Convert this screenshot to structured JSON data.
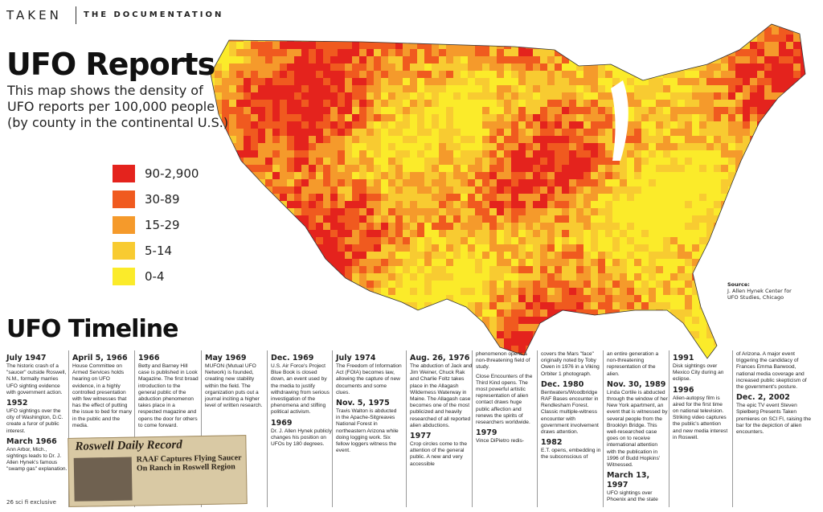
{
  "header": {
    "brand": "TAKEN",
    "section": "THE DOCUMENTATION"
  },
  "map": {
    "title": "UFO Reports",
    "subtitle": [
      "This map shows the density of",
      "UFO reports per 100,000 people",
      "(by county in the continental U.S.)"
    ],
    "legend": [
      {
        "label": "90-2,900",
        "color": "#e4231d"
      },
      {
        "label": "30-89",
        "color": "#f05a1f"
      },
      {
        "label": "15-29",
        "color": "#f59a2b"
      },
      {
        "label": "5-14",
        "color": "#f8cb31"
      },
      {
        "label": "0-4",
        "color": "#fbeb2a"
      }
    ],
    "source": [
      "Source:",
      "J. Allen Hynek Center for",
      "UFO Studies, Chicago"
    ]
  },
  "timeline": {
    "title": "UFO Timeline",
    "columns": [
      [
        {
          "date": "July 1947",
          "text": "The historic crash of a \"saucer\" outside Roswell, N.M., formally marries UFO sighting evidence with government action."
        },
        {
          "date": "1952",
          "text": "UFO sightings over the city of Washington, D.C. create a furor of public interest."
        },
        {
          "date": "March 1966",
          "text": "Ann Arbor, Mich., sightings leads to Dr. J. Allen Hynek's famous \"swamp gas\" explanation."
        }
      ],
      [
        {
          "date": "April 5, 1966",
          "text": "House Committee on Armed Services holds hearing on UFO evidence, in a highly controlled presentation with few witnesses that has the effect of putting the issue to bed for many in the public and the media."
        }
      ],
      [
        {
          "date": "1966",
          "text": "Betty and Barney Hill case is published in Look Magazine. The first broad introduction to the general public of the abduction phenomenon takes place in a respected magazine and opens the door for others to come forward."
        }
      ],
      [
        {
          "date": "May 1969",
          "text": "MUFON (Mutual UFO Network) is founded, creating new stability within the field. The organization puts out a journal inciting a higher level of written research."
        }
      ],
      [
        {
          "date": "Dec. 1969",
          "text": "U.S. Air Force's Project Blue Book is closed down, an event used by the media to justify withdrawing from serious investigation of the phenomena and stifling political activism."
        },
        {
          "date": "1969",
          "text": "Dr. J. Allen Hynek publicly changes his position on UFOs by 180 degrees."
        }
      ],
      [
        {
          "date": "July 1974",
          "text": "The Freedom of Information Act (FOIA) becomes law, allowing the capture of new documents and some clues."
        },
        {
          "date": "Nov. 5, 1975",
          "text": "Travis Walton is abducted in the Apache-Sitgreaves National Forest in northeastern Arizona while doing logging work. Six fellow loggers witness the event."
        }
      ],
      [
        {
          "date": "Aug. 26, 1976",
          "text": "The abduction of Jack and Jim Weiner, Chuck Rak and Charlie Foltz takes place in the Allagash Wilderness Waterway in Maine. The Allagash case becomes one of the most publicized and heavily researched of all reported alien abductions."
        },
        {
          "date": "1977",
          "text": "Crop circles come to the attention of the general public. A new and very accessible"
        }
      ],
      [
        {
          "text": "phenomenon opens a non-threatening field of study."
        },
        {
          "text": "Close Encounters of the Third Kind opens. The most powerful artistic representation of alien contact draws huge public affection and renews the spirits of researchers worldwide."
        },
        {
          "date": "1979",
          "text": "Vince DiPietro redis-"
        }
      ],
      [
        {
          "text": "covers the Mars \"face\" originally noted by Toby Owen in 1976 in a Viking Orbiter 1 photograph."
        },
        {
          "date": "Dec. 1980",
          "text": "Bentwaters/Woodbridge RAF Bases encounter in Rendlesham Forest. Classic multiple-witness encounter with government involvement draws attention."
        },
        {
          "date": "1982",
          "text": "E.T. opens, embedding in the subconscious of"
        }
      ],
      [
        {
          "text": "an entire generation a non-threatening representation of the alien."
        },
        {
          "date": "Nov. 30, 1989",
          "text": "Linda Cortile is abducted through the window of her New York apartment, an event that is witnessed by several people from the Brooklyn Bridge. This well-researched case goes on to receive international attention with the publication in 1996 of Budd Hopkins' Witnessed."
        },
        {
          "date": "March 13, 1997",
          "text": "UFO sightings over Phoenix and the state"
        }
      ],
      [
        {
          "date": "1991",
          "text": "Disk sightings over Mexico City during an eclipse."
        },
        {
          "date": "1996",
          "text": "Alien-autopsy film is aired for the first time on national television. Striking video captures the public's attention and new media interest in Roswell."
        }
      ],
      [
        {
          "text": "of Arizona. A major event triggering the candidacy of Frances Emma Barwood, national media coverage and increased public skepticism of the government's posture."
        },
        {
          "date": "Dec. 2, 2002",
          "text": "The epic TV event Steven Spielberg Presents Taken premieres on SCI FI, raising the bar for the depiction of alien encounters."
        }
      ]
    ]
  },
  "clipping": {
    "masthead": "Roswell Daily Record",
    "headline": [
      "RAAF Captures Flying Saucer",
      "On Ranch in Roswell Region"
    ]
  },
  "footer": "26 sci fi exclusive"
}
